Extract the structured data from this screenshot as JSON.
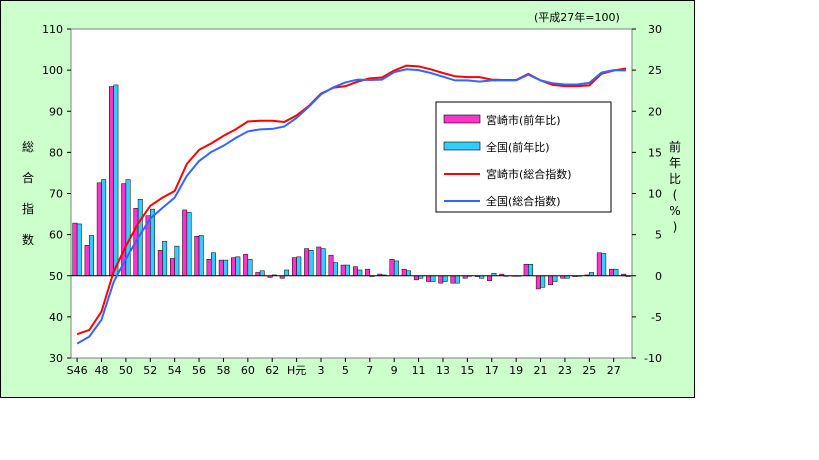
{
  "chart_data": {
    "type": "bar+line",
    "note": "(平成27年=100)",
    "ylabel_left": "総合指数",
    "ylabel_right": "前年比(%)",
    "ylim_left": [
      30,
      110
    ],
    "yticks_left": [
      30,
      40,
      50,
      60,
      70,
      80,
      90,
      100,
      110
    ],
    "ylim_right": [
      -10,
      30
    ],
    "yticks_right": [
      -10,
      -5,
      0,
      5,
      10,
      15,
      20,
      25,
      30
    ],
    "x": [
      "S46",
      "47",
      "48",
      "49",
      "50",
      "51",
      "52",
      "53",
      "54",
      "55",
      "56",
      "57",
      "58",
      "59",
      "60",
      "61",
      "62",
      "63",
      "H元",
      "2",
      "3",
      "4",
      "5",
      "6",
      "7",
      "8",
      "9",
      "10",
      "11",
      "12",
      "13",
      "14",
      "15",
      "16",
      "17",
      "18",
      "19",
      "20",
      "21",
      "22",
      "23",
      "24",
      "25",
      "26",
      "27",
      "28"
    ],
    "x_tick_labels": [
      "S46",
      "48",
      "50",
      "52",
      "54",
      "56",
      "58",
      "60",
      "62",
      "H元",
      "3",
      "5",
      "7",
      "9",
      "11",
      "13",
      "15",
      "17",
      "19",
      "21",
      "23",
      "25",
      "27"
    ],
    "legend": [
      "宮崎市(前年比)",
      "全国(前年比)",
      "宮崎市(総合指数)",
      "全国(総合指数)"
    ],
    "colors": {
      "miyazaki_bar": "#ff33cc",
      "national_bar": "#33ccff",
      "miyazaki_line": "#ff0000",
      "national_line": "#3366ff",
      "plot_bg": "#ffffff",
      "frame_bg": "#ccffcc"
    },
    "series": [
      {
        "name": "宮崎市(前年比)",
        "type": "bar",
        "axis": "right",
        "values": [
          6.4,
          3.7,
          11.3,
          23.0,
          11.2,
          8.2,
          7.3,
          3.1,
          2.1,
          8.0,
          4.8,
          2.0,
          1.9,
          2.2,
          2.6,
          0.4,
          -0.2,
          -0.3,
          2.2,
          3.3,
          3.5,
          2.5,
          1.3,
          1.1,
          0.8,
          0.2,
          2.0,
          0.8,
          -0.5,
          -0.7,
          -0.9,
          -0.9,
          -0.3,
          -0.1,
          -0.6,
          0.2,
          0.0,
          1.4,
          -1.6,
          -1.1,
          -0.3,
          -0.1,
          0.1,
          2.8,
          0.8,
          0.2
        ]
      },
      {
        "name": "全国(前年比)",
        "type": "bar",
        "axis": "right",
        "values": [
          6.3,
          4.9,
          11.7,
          23.2,
          11.7,
          9.3,
          8.1,
          4.2,
          3.6,
          7.7,
          4.9,
          2.8,
          1.9,
          2.3,
          2.0,
          0.6,
          0.1,
          0.7,
          2.3,
          3.1,
          3.3,
          1.6,
          1.3,
          0.7,
          -0.1,
          0.1,
          1.8,
          0.6,
          -0.3,
          -0.7,
          -0.7,
          -0.9,
          -0.0,
          -0.3,
          0.3,
          0.0,
          0.0,
          1.4,
          -1.4,
          -0.7,
          -0.3,
          -0.0,
          0.4,
          2.7,
          0.8,
          -0.1
        ]
      },
      {
        "name": "宮崎市(総合指数)",
        "type": "line",
        "axis": "left",
        "values": [
          35.8,
          36.8,
          41.3,
          51.0,
          57.2,
          62.7,
          67.0,
          69.0,
          70.6,
          77.2,
          80.6,
          82.2,
          84.0,
          85.6,
          87.5,
          87.7,
          87.7,
          87.4,
          89.0,
          91.3,
          94.3,
          95.7,
          96.1,
          97.2,
          98.0,
          98.2,
          99.9,
          101.1,
          100.9,
          100.2,
          99.3,
          98.5,
          98.3,
          98.3,
          97.7,
          97.6,
          97.6,
          99.1,
          97.5,
          96.4,
          96.1,
          96.1,
          96.3,
          99.1,
          99.9,
          100.4
        ]
      },
      {
        "name": "全国(総合指数)",
        "type": "line",
        "axis": "left",
        "values": [
          33.5,
          35.2,
          39.3,
          48.5,
          54.1,
          59.2,
          63.9,
          66.5,
          69.0,
          74.3,
          77.9,
          80.1,
          81.6,
          83.5,
          85.1,
          85.6,
          85.7,
          86.3,
          88.4,
          91.1,
          94.1,
          95.8,
          97.0,
          97.7,
          97.6,
          97.7,
          99.5,
          100.2,
          100.0,
          99.3,
          98.4,
          97.5,
          97.5,
          97.2,
          97.5,
          97.5,
          97.5,
          98.9,
          97.5,
          96.8,
          96.5,
          96.5,
          96.9,
          99.4,
          100.0,
          99.9
        ]
      }
    ],
    "grid": false,
    "legend_position": "right"
  }
}
